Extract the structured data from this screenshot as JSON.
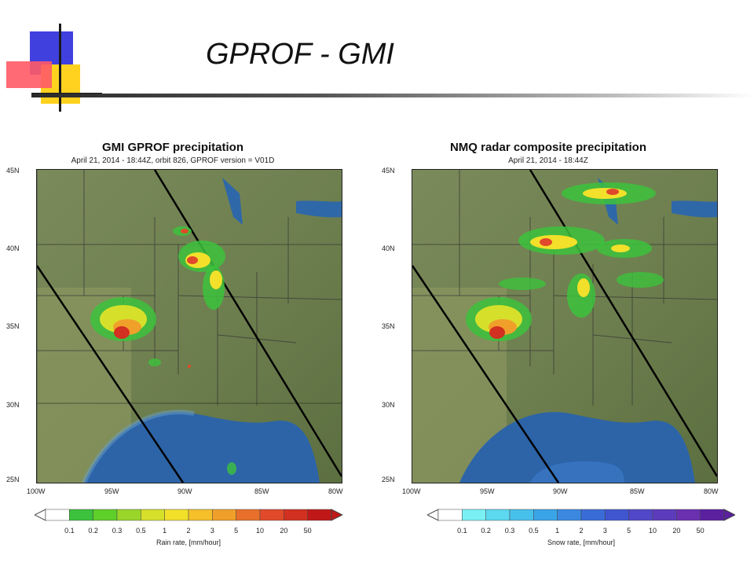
{
  "slide": {
    "title": "GPROF - GMI"
  },
  "left_map": {
    "title": "GMI GPROF precipitation",
    "subtitle": "April 21, 2014 - 18:44Z, orbit 826, GPROF version = V01D",
    "colorbar_title": "Rain rate, [mm/hour]",
    "colorbar_labels": [
      "0.1",
      "0.2",
      "0.3",
      "0.5",
      "1",
      "2",
      "3",
      "5",
      "10",
      "20",
      "50"
    ],
    "colorbar_colors": [
      "#ffffff",
      "#3cc23c",
      "#5fcf2a",
      "#9ad62a",
      "#d6e02a",
      "#f2e02a",
      "#f5c02a",
      "#f0a02a",
      "#e8702a",
      "#e04a2a",
      "#d23020",
      "#c01818"
    ]
  },
  "right_map": {
    "title": "NMQ radar composite precipitation",
    "subtitle": "April 21, 2014 - 18:44Z",
    "colorbar_title": "Snow rate, [mm/hour]",
    "colorbar_labels": [
      "0.1",
      "0.2",
      "0.3",
      "0.5",
      "1",
      "2",
      "3",
      "5",
      "10",
      "20",
      "50"
    ],
    "colorbar_colors": [
      "#ffffff",
      "#7af0f5",
      "#5cd8f0",
      "#48c0ec",
      "#3aa4e8",
      "#3a88e0",
      "#3a6cd8",
      "#4056d0",
      "#5048c8",
      "#5c3cbc",
      "#6a30b0",
      "#5a20a0"
    ]
  },
  "axes": {
    "lat_labels": [
      "45N",
      "40N",
      "35N",
      "30N",
      "25N"
    ],
    "lon_labels": [
      "100W",
      "95W",
      "90W",
      "85W",
      "80W"
    ]
  }
}
